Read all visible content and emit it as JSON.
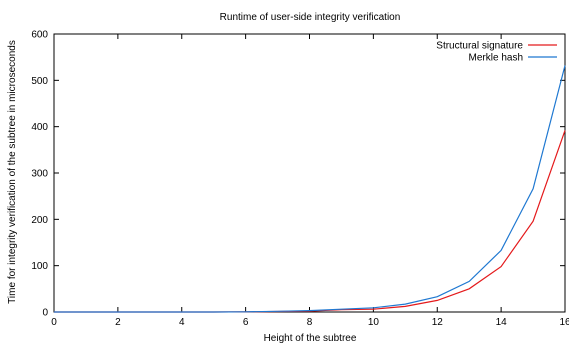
{
  "chart_data": {
    "type": "line",
    "title": "Runtime of user-side integrity verification",
    "xlabel": "Height of the subtree",
    "ylabel": "Time for integrity verification of the subtree in microseconds",
    "xlim": [
      0,
      16
    ],
    "ylim": [
      0,
      600
    ],
    "x_ticks": [
      0,
      2,
      4,
      6,
      8,
      10,
      12,
      14,
      16
    ],
    "y_ticks": [
      0,
      100,
      200,
      300,
      400,
      500,
      600
    ],
    "grid": false,
    "legend_position": "top-right",
    "x": [
      0,
      1,
      2,
      3,
      4,
      5,
      6,
      7,
      8,
      9,
      10,
      11,
      12,
      13,
      14,
      15,
      16
    ],
    "series": [
      {
        "name": "Structural signature",
        "color": "#e41a1c",
        "values": [
          0,
          0,
          0,
          0,
          0,
          0,
          0.5,
          1,
          2,
          5,
          6,
          12,
          25,
          50,
          98,
          196,
          392
        ]
      },
      {
        "name": "Merkle hash",
        "color": "#1f78d1",
        "values": [
          0,
          0,
          0,
          0,
          0,
          0,
          0.5,
          1.5,
          3,
          6,
          9,
          17,
          33,
          66,
          133,
          266,
          532
        ]
      }
    ]
  }
}
